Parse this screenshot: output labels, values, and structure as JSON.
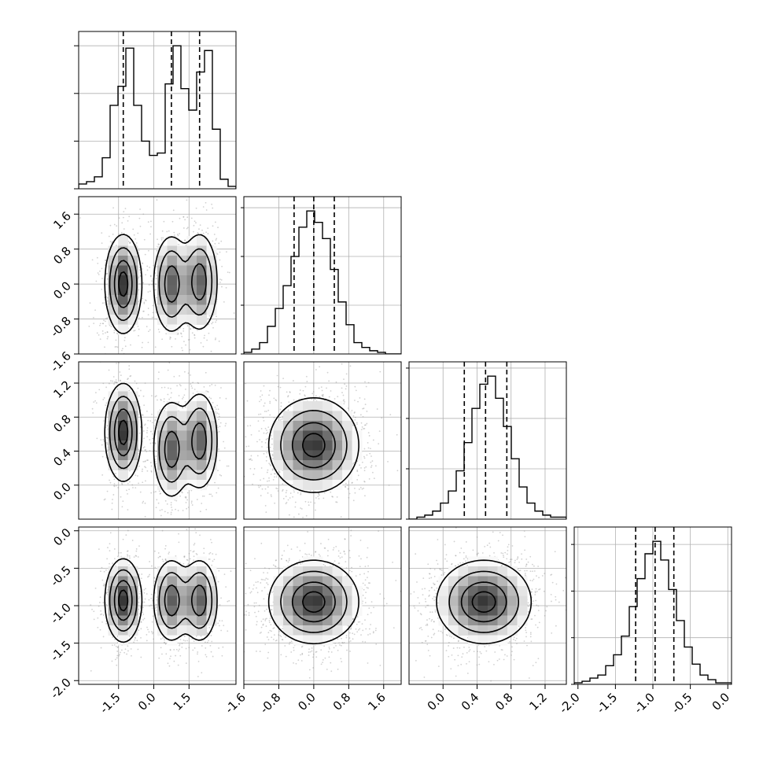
{
  "chart_data": {
    "type": "corner",
    "grid": true,
    "parameters": [
      {
        "range": [
          -3.2,
          3.5
        ],
        "ticks": [
          -1.5,
          0.0,
          1.5
        ],
        "tick_labels": [
          "-1.5",
          "0.0",
          "1.5"
        ],
        "quantiles": [
          -1.3,
          0.75,
          1.95
        ],
        "hist_bins": [
          -3.2,
          -2.865,
          -2.53,
          -2.195,
          -1.86,
          -1.525,
          -1.19,
          -0.855,
          -0.52,
          -0.185,
          0.15,
          0.485,
          0.82,
          1.155,
          1.49,
          1.825,
          2.16,
          2.495,
          2.83,
          3.165,
          3.5
        ],
        "hist_counts": [
          2,
          3,
          5,
          13,
          35,
          43,
          59,
          35,
          20,
          14,
          15,
          44,
          60,
          42,
          33,
          49,
          58,
          25,
          4,
          1
        ]
      },
      {
        "range": [
          -1.6,
          2.0
        ],
        "ticks": [
          -1.6,
          -0.8,
          0.0,
          0.8,
          1.6
        ],
        "tick_labels": [
          "-1.6",
          "-0.8",
          "0.0",
          "0.8",
          "1.6"
        ],
        "quantiles": [
          -0.45,
          0.0,
          0.47
        ],
        "hist_bins": [
          -1.6,
          -1.42,
          -1.24,
          -1.06,
          -0.88,
          -0.7,
          -0.52,
          -0.34,
          -0.16,
          0.02,
          0.2,
          0.38,
          0.56,
          0.74,
          0.92,
          1.1,
          1.28,
          1.46,
          1.64,
          1.82,
          2.0
        ],
        "hist_counts": [
          1,
          3,
          7,
          17,
          28,
          42,
          60,
          78,
          88,
          81,
          71,
          52,
          32,
          18,
          7,
          4,
          2,
          1,
          0,
          0
        ]
      },
      {
        "range": [
          -0.4,
          1.45
        ],
        "ticks": [
          0.0,
          0.4,
          0.8,
          1.2
        ],
        "tick_labels": [
          "0.0",
          "0.4",
          "0.8",
          "1.2"
        ],
        "quantiles": [
          0.25,
          0.5,
          0.75
        ],
        "hist_bins": [
          -0.4,
          -0.3075,
          -0.215,
          -0.1225,
          -0.03,
          0.0625,
          0.155,
          0.2475,
          0.34,
          0.4325,
          0.525,
          0.6175,
          0.71,
          0.8025,
          0.895,
          0.9875,
          1.08,
          1.1725,
          1.265,
          1.3575,
          1.45
        ],
        "hist_counts": [
          0,
          1,
          2,
          4,
          8,
          14,
          24,
          38,
          55,
          67,
          71,
          60,
          46,
          30,
          16,
          8,
          4,
          2,
          1,
          1
        ]
      },
      {
        "range": [
          -2.05,
          0.05
        ],
        "ticks": [
          -2.0,
          -1.5,
          -1.0,
          -0.5,
          0.0
        ],
        "tick_labels": [
          "-2.0",
          "-1.5",
          "-1.0",
          "-0.5",
          "0.0"
        ],
        "quantiles": [
          -1.23,
          -0.97,
          -0.72
        ],
        "hist_bins": [
          -2.05,
          -1.945,
          -1.84,
          -1.735,
          -1.63,
          -1.525,
          -1.42,
          -1.315,
          -1.21,
          -1.105,
          -1.0,
          -0.895,
          -0.79,
          -0.685,
          -0.58,
          -0.475,
          -0.37,
          -0.265,
          -0.16,
          -0.055,
          0.05
        ],
        "hist_counts": [
          1,
          2,
          4,
          6,
          12,
          19,
          31,
          50,
          68,
          84,
          92,
          80,
          61,
          41,
          24,
          13,
          6,
          3,
          1,
          1
        ]
      }
    ],
    "histogram_y_ticks": [
      [
        0,
        20,
        40,
        60
      ],
      [
        0,
        30,
        60,
        90
      ],
      [
        0,
        25,
        50,
        75
      ],
      [
        0,
        30,
        60,
        90
      ]
    ],
    "pairs": [
      {
        "x": 0,
        "y": 1,
        "modes": [
          {
            "cx": -1.3,
            "cy": 0.0,
            "sx": 0.38,
            "sy": 0.55,
            "w": 0.38
          },
          {
            "cx": 0.75,
            "cy": 0.0,
            "sx": 0.38,
            "sy": 0.55,
            "w": 0.31
          },
          {
            "cx": 1.95,
            "cy": 0.05,
            "sx": 0.38,
            "sy": 0.55,
            "w": 0.31
          }
        ]
      },
      {
        "x": 0,
        "y": 2,
        "modes": [
          {
            "cx": -1.3,
            "cy": 0.62,
            "sx": 0.38,
            "sy": 0.28,
            "w": 0.38
          },
          {
            "cx": 0.75,
            "cy": 0.42,
            "sx": 0.38,
            "sy": 0.28,
            "w": 0.31
          },
          {
            "cx": 1.95,
            "cy": 0.52,
            "sx": 0.38,
            "sy": 0.28,
            "w": 0.31
          }
        ]
      },
      {
        "x": 1,
        "y": 2,
        "modes": [
          {
            "cx": 0.0,
            "cy": 0.47,
            "sx": 0.5,
            "sy": 0.27,
            "w": 1.0
          }
        ]
      },
      {
        "x": 0,
        "y": 3,
        "modes": [
          {
            "cx": -1.3,
            "cy": -0.93,
            "sx": 0.38,
            "sy": 0.27,
            "w": 0.38
          },
          {
            "cx": 0.75,
            "cy": -0.93,
            "sx": 0.38,
            "sy": 0.27,
            "w": 0.31
          },
          {
            "cx": 1.95,
            "cy": -0.93,
            "sx": 0.38,
            "sy": 0.27,
            "w": 0.31
          }
        ]
      },
      {
        "x": 1,
        "y": 3,
        "modes": [
          {
            "cx": 0.0,
            "cy": -0.95,
            "sx": 0.5,
            "sy": 0.27,
            "w": 1.0
          }
        ]
      },
      {
        "x": 2,
        "y": 3,
        "modes": [
          {
            "cx": 0.48,
            "cy": -0.95,
            "sx": 0.27,
            "sy": 0.27,
            "w": 1.0
          }
        ]
      }
    ],
    "colors": {
      "line": "#000000",
      "grid": "#b0b0b0",
      "scatter": "#9a9a9a"
    }
  }
}
